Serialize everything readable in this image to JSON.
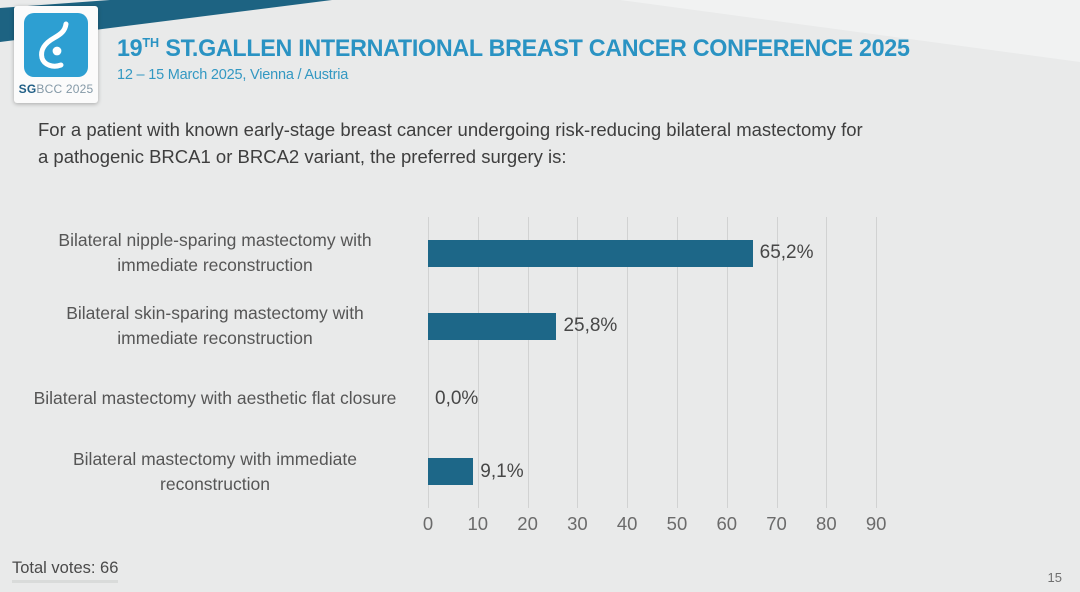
{
  "header": {
    "logo": {
      "sg": "SG",
      "rest": "BCC 2025"
    },
    "title": {
      "number": "19",
      "ordinal": "TH",
      "rest": " ST.GALLEN INTERNATIONAL BREAST CANCER CONFERENCE 2025"
    },
    "subtitle": "12 – 15 March 2025, Vienna / Austria"
  },
  "question": {
    "lines": [
      "For a patient with known early-stage breast cancer undergoing risk-reducing bilateral mastectomy for",
      "a pathogenic BRCA1 or BRCA2 variant, the preferred surgery is:"
    ]
  },
  "chart_data": {
    "type": "bar",
    "orientation": "horizontal",
    "categories": [
      "Bilateral nipple-sparing mastectomy with immediate reconstruction",
      "Bilateral skin-sparing mastectomy with immediate reconstruction",
      "Bilateral mastectomy with aesthetic flat closure",
      "Bilateral mastectomy with immediate reconstruction"
    ],
    "values": [
      65.2,
      25.8,
      0.0,
      9.1
    ],
    "value_labels": [
      "65,2%",
      "25,8%",
      "0,0%",
      "9,1%"
    ],
    "x_ticks": [
      0,
      10,
      20,
      30,
      40,
      50,
      60,
      70,
      80,
      90
    ],
    "xlim": [
      0,
      96
    ],
    "grid": true,
    "legend": false,
    "bar_color": "#1d6788"
  },
  "footer": {
    "total_votes": "Total votes: 66",
    "page_number": "15"
  },
  "colors": {
    "accent_teal": "#2a93c3",
    "band_dark_teal": "#1d6382",
    "logo_blue": "#2d9fd2",
    "bar_blue": "#1d6788",
    "background": "#e9eaea"
  }
}
